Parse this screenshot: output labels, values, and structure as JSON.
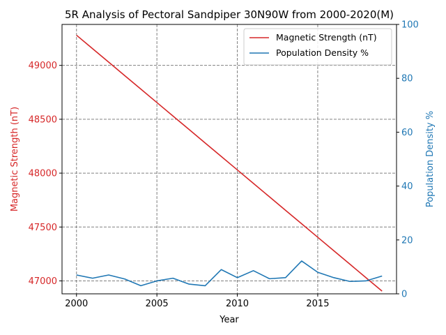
{
  "chart_data": {
    "type": "line",
    "title": "5R Analysis of Pectoral Sandpiper 30N90W from 2000-2020(M)",
    "xlabel": "Year",
    "ylabel_left": "Magnetic Strength (nT)",
    "ylabel_right": "Population Density %",
    "xlim": [
      1999.1,
      2019.9
    ],
    "ylim_left": [
      46880,
      49380
    ],
    "ylim_right": [
      0,
      100
    ],
    "x_ticks": [
      2000,
      2005,
      2010,
      2015
    ],
    "y_left_ticks": [
      47000,
      47500,
      48000,
      48500,
      49000
    ],
    "y_right_ticks": [
      0,
      20,
      40,
      60,
      80,
      100
    ],
    "grid": true,
    "legend_position": "top-right",
    "x": [
      2000,
      2001,
      2002,
      2003,
      2004,
      2005,
      2006,
      2007,
      2008,
      2009,
      2010,
      2011,
      2012,
      2013,
      2014,
      2015,
      2016,
      2017,
      2018,
      2019
    ],
    "series": [
      {
        "name": "Magnetic Strength (nT)",
        "axis": "left",
        "color": "#d62728",
        "values": [
          49280,
          49155,
          49030,
          48905,
          48780,
          48655,
          48530,
          48405,
          48280,
          48155,
          48030,
          47905,
          47780,
          47655,
          47530,
          47405,
          47280,
          47155,
          47030,
          46905
        ]
      },
      {
        "name": "Population Density %",
        "axis": "right",
        "color": "#1f77b4",
        "values": [
          7.0,
          5.8,
          7.0,
          5.5,
          3.0,
          4.8,
          5.8,
          3.6,
          3.0,
          9.0,
          6.0,
          8.6,
          5.6,
          6.0,
          12.2,
          8.0,
          6.0,
          4.6,
          4.8,
          6.6
        ]
      }
    ]
  }
}
